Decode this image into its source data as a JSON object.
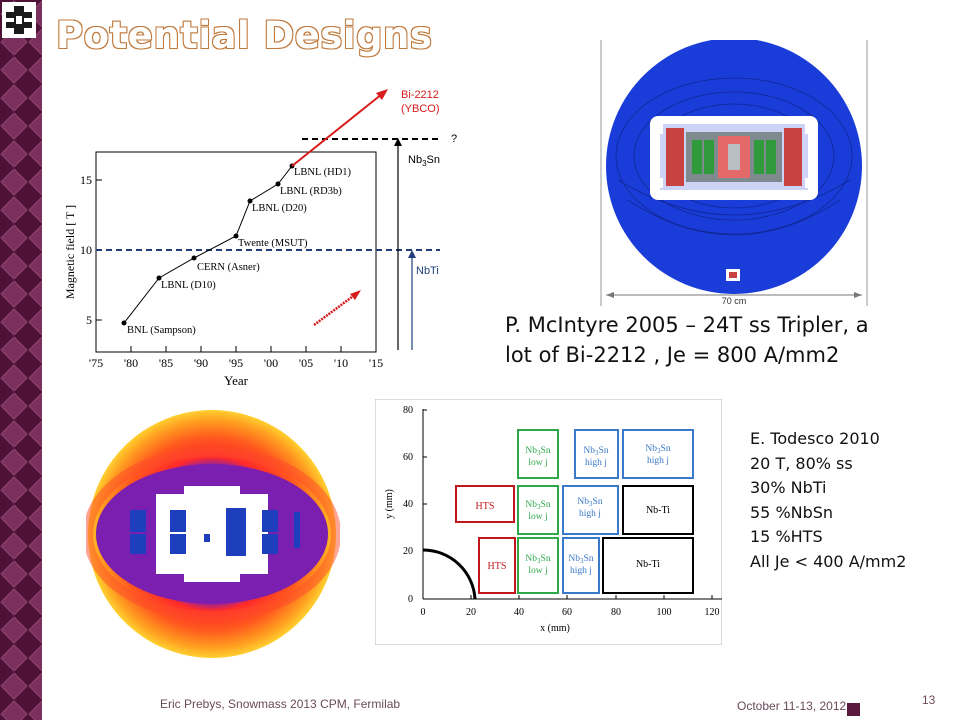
{
  "slide": {
    "title": "Potential Designs",
    "colors": {
      "sidebar": "#5a1a3f",
      "title_fill": "#ffffff",
      "title_outline": "#c07a3d",
      "footer_text": "#6a4a5a"
    },
    "icons": {
      "logo": "fermilab-logo-icon"
    }
  },
  "history_plot": {
    "xlabel": "Year",
    "ylabel": "Magnetic field [ T ]",
    "x_ticks": [
      "'75",
      "'80",
      "'85",
      "'90",
      "'95",
      "'00",
      "'05",
      "'10",
      "'15"
    ],
    "y_ticks": [
      "5",
      "10",
      "15"
    ],
    "points": [
      {
        "label": "BNL (Sampson)"
      },
      {
        "label": "LBNL (D10)"
      },
      {
        "label": "CERN (Asner)"
      },
      {
        "label": "Twente (MSUT)"
      },
      {
        "label": "LBNL (D20)"
      },
      {
        "label": "LBNL (RD3b)"
      },
      {
        "label": "LBNL (HD1)"
      }
    ],
    "annotations": {
      "bi2212": "Bi-2212",
      "ybco": "(YBCO)",
      "question": "?",
      "nb3sn_prefix": "Nb",
      "nb3sn_sub": "3",
      "nb3sn_suffix": "Sn",
      "nbti": "NbTi"
    }
  },
  "tripler": {
    "dimension_label": "70 cm",
    "caption_line1": "P. McIntyre 2005 – 24T ss Tripler, a",
    "caption_line2": "lot of Bi-2212 , Je = 800 A/mm2"
  },
  "todesco": {
    "xlabel": "x (mm)",
    "ylabel": "y (mm)",
    "x_ticks": [
      "0",
      "20",
      "40",
      "60",
      "80",
      "100",
      "120"
    ],
    "y_ticks": [
      "0",
      "20",
      "40",
      "60",
      "80"
    ],
    "blocks": {
      "hts": "HTS",
      "nbti": "Nb-Ti",
      "nb3sn_a": "Nb",
      "nb3sn_sub": "3",
      "nb3sn_b": "Sn",
      "lowj": "low j",
      "highj": "high j"
    },
    "caption": [
      "E. Todesco 2010",
      "20 T, 80% ss",
      "30% NbTi",
      "55 %NbSn",
      "15 %HTS",
      "All Je < 400 A/mm2"
    ]
  },
  "footer": {
    "left": "Eric Prebys, Snowmass 2013 CPM, Fermilab",
    "date": "October 11-13, 2012",
    "page": "13"
  }
}
